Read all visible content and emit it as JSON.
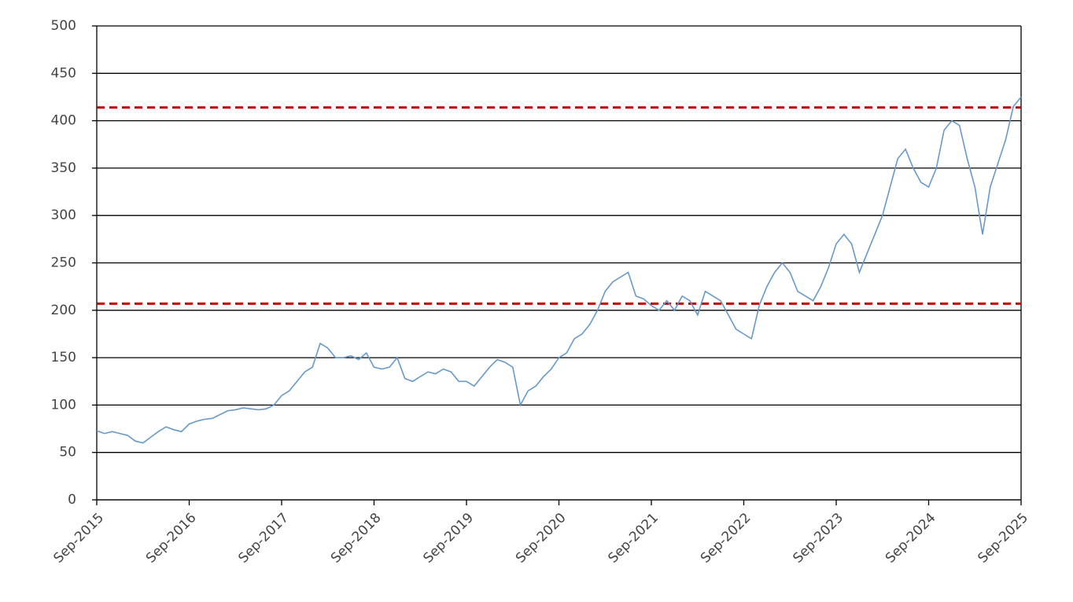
{
  "chart_data": {
    "type": "line",
    "categories": [
      "Sep-2015",
      null,
      null,
      null,
      null,
      null,
      null,
      null,
      null,
      null,
      null,
      null,
      "Sep-2016",
      null,
      null,
      null,
      null,
      null,
      null,
      null,
      null,
      null,
      null,
      null,
      "Sep-2017",
      null,
      null,
      null,
      null,
      null,
      null,
      null,
      null,
      null,
      null,
      null,
      "Sep-2018",
      null,
      null,
      null,
      null,
      null,
      null,
      null,
      null,
      null,
      null,
      null,
      "Sep-2019",
      null,
      null,
      null,
      null,
      null,
      null,
      null,
      null,
      null,
      null,
      null,
      "Sep-2020",
      null,
      null,
      null,
      null,
      null,
      null,
      null,
      null,
      null,
      null,
      null,
      "Sep-2021",
      null,
      null,
      null,
      null,
      null,
      null,
      null,
      null,
      null,
      null,
      null,
      "Sep-2022",
      null,
      null,
      null,
      null,
      null,
      null,
      null,
      null,
      null,
      null,
      null,
      "Sep-2023",
      null,
      null,
      null,
      null,
      null,
      null,
      null,
      null,
      null,
      null,
      null,
      "Sep-2024",
      null,
      null,
      null,
      null,
      null,
      null,
      null,
      null,
      null,
      null,
      null,
      "Sep-2025"
    ],
    "series": [
      {
        "color": "#6699cc",
        "values": [
          73,
          70,
          72,
          70,
          68,
          62,
          60,
          66,
          72,
          77,
          74,
          72,
          80,
          83,
          85,
          86,
          90,
          94,
          95,
          97,
          96,
          95,
          96,
          100,
          110,
          115,
          125,
          135,
          140,
          165,
          160,
          150,
          150,
          152,
          148,
          155,
          140,
          138,
          140,
          150,
          128,
          125,
          130,
          135,
          133,
          138,
          135,
          125,
          125,
          120,
          130,
          140,
          148,
          145,
          140,
          100,
          115,
          120,
          130,
          138,
          150,
          155,
          170,
          175,
          185,
          200,
          220,
          230,
          235,
          240,
          215,
          212,
          205,
          200,
          210,
          200,
          215,
          210,
          195,
          220,
          215,
          210,
          195,
          180,
          175,
          170,
          205,
          225,
          240,
          250,
          240,
          220,
          215,
          210,
          225,
          245,
          270,
          280,
          270,
          240,
          260,
          280,
          300,
          330,
          360,
          370,
          350,
          335,
          330,
          350,
          390,
          400,
          395,
          360,
          330,
          280,
          330,
          355,
          380,
          415,
          425
        ]
      }
    ],
    "reference_lines": [
      {
        "value": 414,
        "color": "#c00000"
      },
      {
        "value": 207,
        "color": "#c00000"
      }
    ],
    "ylim": [
      0,
      500
    ],
    "yticks": [
      0,
      50,
      100,
      150,
      200,
      250,
      300,
      350,
      400,
      450,
      500
    ],
    "grid": true
  }
}
